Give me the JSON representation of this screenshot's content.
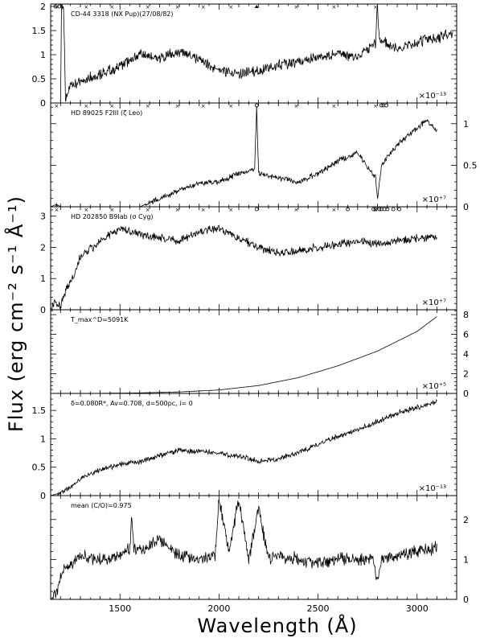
{
  "figure": {
    "xlabel": "Wavelength (Å)",
    "ylabel": "Flux (erg cm⁻² s⁻¹ Å⁻¹)"
  },
  "chart_data": [
    {
      "type": "line",
      "label": "CD-44 3318 (NX Pup)(27/08/82)",
      "scale": "×10⁻¹³",
      "y_axis": "left",
      "ylim": [
        0,
        2.05
      ],
      "yticks": [
        0,
        0.5,
        1,
        1.5,
        2
      ],
      "xlim": [
        1150,
        3200
      ],
      "xticks": [
        1500,
        2000,
        2500,
        3000
      ],
      "noise": 0.09,
      "markers": [
        {
          "type": "x",
          "x": [
            1180,
            1330,
            1460,
            1640,
            1790,
            1920,
            2060,
            2390,
            2580,
            2790
          ]
        },
        {
          "type": "o",
          "x": [
            1175,
            1195
          ]
        },
        {
          "type": "triangle",
          "x": [
            2190
          ]
        }
      ],
      "series": [
        {
          "x": [
            1150,
            1200,
            1205,
            1215,
            1225,
            1245,
            1300,
            1400,
            1500,
            1550,
            1600,
            1700,
            1800,
            1900,
            1950,
            2000,
            2100,
            2200,
            2300,
            2400,
            2500,
            2600,
            2700,
            2790,
            2800,
            2810,
            2900,
            3000,
            3100,
            3180
          ],
          "y": [
            0,
            0,
            2.05,
            2.05,
            0.1,
            0.3,
            0.45,
            0.6,
            0.75,
            0.9,
            1.0,
            0.92,
            1.05,
            0.9,
            0.78,
            0.7,
            0.6,
            0.65,
            0.8,
            0.85,
            0.95,
            1.0,
            0.95,
            1.25,
            2.05,
            1.3,
            1.1,
            1.25,
            1.35,
            1.45
          ]
        }
      ]
    },
    {
      "type": "line",
      "label": "HD 89025 F2III (ζ Leo)",
      "scale": "×10⁺⁷",
      "y_axis": "right",
      "ylim": [
        0,
        1.25
      ],
      "yticks": [
        0,
        0.5,
        1
      ],
      "xlim": [
        1150,
        3200
      ],
      "xticks": [
        1500,
        2000,
        2500,
        3000
      ],
      "noise": 0.025,
      "markers": [
        {
          "type": "x",
          "x": [
            1180,
            1330,
            1460,
            1640,
            1790,
            1920,
            2060,
            2390,
            2580,
            2790
          ]
        },
        {
          "type": "o",
          "x": [
            2190,
            2820,
            2830,
            2845
          ]
        }
      ],
      "series": [
        {
          "x": [
            1150,
            1180,
            1200,
            1600,
            1700,
            1800,
            1900,
            2000,
            2100,
            2180,
            2190,
            2200,
            2300,
            2400,
            2500,
            2600,
            2700,
            2790,
            2800,
            2820,
            2900,
            3000,
            3050,
            3100
          ],
          "y": [
            0,
            0.03,
            0,
            0,
            0.1,
            0.2,
            0.28,
            0.3,
            0.4,
            0.45,
            1.2,
            0.4,
            0.35,
            0.3,
            0.4,
            0.55,
            0.65,
            0.35,
            0.1,
            0.5,
            0.75,
            0.95,
            1.05,
            0.9
          ]
        }
      ]
    },
    {
      "type": "line",
      "label": "HD 202850 B9Iab (σ Cyg)",
      "scale": "×10⁺⁷",
      "y_axis": "left",
      "ylim": [
        0,
        3.3
      ],
      "yticks": [
        0,
        1,
        2,
        3
      ],
      "xlim": [
        1150,
        3200
      ],
      "xticks": [
        1500,
        2000,
        2500,
        3000
      ],
      "noise": 0.1,
      "markers": [
        {
          "type": "x",
          "x": [
            1180,
            1330,
            1460,
            1640,
            1790,
            1920,
            2060,
            2390,
            2580,
            2790
          ]
        },
        {
          "type": "o",
          "x": [
            2190,
            2650,
            2780,
            2790,
            2810,
            2820,
            2835,
            2850,
            2880,
            2910
          ]
        }
      ],
      "series": [
        {
          "x": [
            1150,
            1170,
            1200,
            1230,
            1260,
            1300,
            1400,
            1500,
            1550,
            1600,
            1700,
            1800,
            1900,
            2000,
            2100,
            2200,
            2300,
            2400,
            2500,
            2600,
            2700,
            2800,
            2900,
            3000,
            3100
          ],
          "y": [
            0,
            0.3,
            0.1,
            0.7,
            1.0,
            1.7,
            2.2,
            2.6,
            2.5,
            2.4,
            2.3,
            2.2,
            2.5,
            2.6,
            2.3,
            2.0,
            1.8,
            1.9,
            2.0,
            2.1,
            2.2,
            2.1,
            2.2,
            2.3,
            2.35
          ]
        }
      ]
    },
    {
      "type": "line",
      "label": "T_max^D=5091K",
      "scale": "×10⁺⁵",
      "y_axis": "right",
      "ylim": [
        0,
        8.5
      ],
      "yticks": [
        0,
        2,
        4,
        6,
        8
      ],
      "xlim": [
        1150,
        3200
      ],
      "xticks": [
        1500,
        2000,
        2500,
        3000
      ],
      "noise": 0,
      "markers": [],
      "series": [
        {
          "x": [
            1150,
            1400,
            1600,
            1800,
            2000,
            2200,
            2400,
            2600,
            2800,
            3000,
            3100
          ],
          "y": [
            0,
            0.01,
            0.05,
            0.15,
            0.35,
            0.8,
            1.6,
            2.8,
            4.3,
            6.3,
            7.8
          ]
        }
      ]
    },
    {
      "type": "line",
      "label": "δ=0.080R*, Av=0.708, d=500pc, i= 0",
      "scale": "×10⁻¹³",
      "y_axis": "left",
      "ylim": [
        0,
        1.8
      ],
      "yticks": [
        0,
        0.5,
        1,
        1.5
      ],
      "xlim": [
        1150,
        3200
      ],
      "xticks": [
        1500,
        2000,
        2500,
        3000
      ],
      "noise": 0.035,
      "markers": [],
      "series": [
        {
          "x": [
            1150,
            1200,
            1250,
            1300,
            1400,
            1500,
            1600,
            1700,
            1800,
            1900,
            2000,
            2100,
            2200,
            2300,
            2400,
            2500,
            2600,
            2700,
            2800,
            2900,
            3000,
            3100
          ],
          "y": [
            0,
            0.05,
            0.15,
            0.3,
            0.45,
            0.55,
            0.6,
            0.7,
            0.8,
            0.78,
            0.75,
            0.7,
            0.6,
            0.65,
            0.75,
            0.9,
            1.05,
            1.15,
            1.3,
            1.45,
            1.55,
            1.65
          ]
        }
      ]
    },
    {
      "type": "line",
      "label": "mean (C/O)=0.975",
      "scale": "",
      "y_axis": "right",
      "ylim": [
        0,
        2.6
      ],
      "yticks": [
        0,
        1,
        2
      ],
      "xlim": [
        1150,
        3200
      ],
      "xticks": [
        1500,
        2000,
        2500,
        3000
      ],
      "noise": 0.12,
      "markers": [],
      "series": [
        {
          "x": [
            1150,
            1180,
            1200,
            1250,
            1300,
            1400,
            1500,
            1550,
            1560,
            1570,
            1600,
            1700,
            1800,
            1900,
            1980,
            2000,
            2050,
            2100,
            2150,
            2200,
            2250,
            2300,
            2400,
            2500,
            2600,
            2700,
            2780,
            2800,
            2820,
            2900,
            3000,
            3100
          ],
          "y": [
            0,
            0.15,
            0.6,
            0.9,
            1.1,
            1.0,
            1.1,
            1.3,
            2.1,
            1.3,
            1.2,
            1.5,
            1.1,
            1.0,
            1.1,
            2.5,
            1.2,
            2.5,
            1.0,
            2.3,
            1.0,
            1.1,
            1.0,
            0.9,
            1.0,
            1.0,
            1.0,
            0.4,
            1.0,
            1.1,
            1.2,
            1.3
          ]
        }
      ]
    }
  ]
}
